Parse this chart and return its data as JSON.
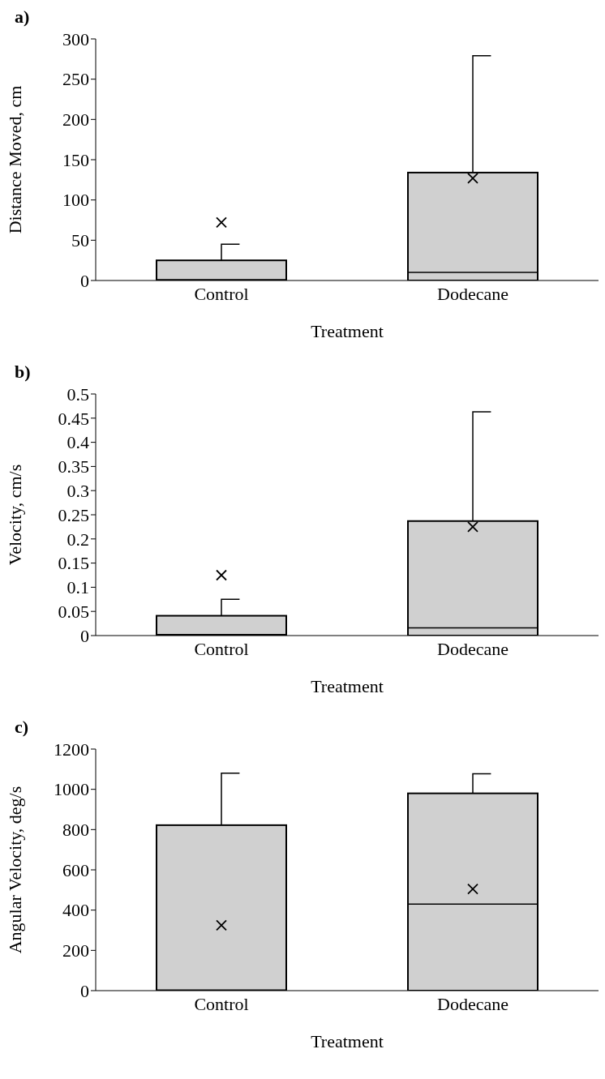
{
  "chart_data": [
    {
      "type": "box",
      "title": "a)",
      "xlabel": "Treatment",
      "ylabel": "Distance Moved, cm",
      "categories": [
        "Control",
        "Dodecane"
      ],
      "color": "#d0d0d0",
      "ylim": [
        0,
        300
      ],
      "yticks": [
        0,
        50,
        100,
        150,
        200,
        250,
        300
      ],
      "grid": false,
      "legend": false,
      "boxes": [
        {
          "q1": 0,
          "median": 1,
          "q3": 25,
          "high": 45,
          "mean": 72
        },
        {
          "q1": 0,
          "median": 10,
          "q3": 134,
          "high": 279,
          "mean": 127
        }
      ]
    },
    {
      "type": "box",
      "title": "b)",
      "xlabel": "Treatment",
      "ylabel": "Velocity, cm/s",
      "categories": [
        "Control",
        "Dodecane"
      ],
      "color": "#d0d0d0",
      "ylim": [
        0,
        0.5
      ],
      "yticks": [
        0,
        0.05,
        0.1,
        0.15,
        0.2,
        0.25,
        0.3,
        0.35,
        0.4,
        0.45,
        0.5
      ],
      "grid": false,
      "legend": false,
      "boxes": [
        {
          "q1": 0,
          "median": 0.002,
          "q3": 0.041,
          "high": 0.075,
          "mean": 0.125
        },
        {
          "q1": 0,
          "median": 0.016,
          "q3": 0.237,
          "high": 0.463,
          "mean": 0.225
        }
      ]
    },
    {
      "type": "box",
      "title": "c)",
      "xlabel": "Treatment",
      "ylabel": "Angular Velocity, deg/s",
      "categories": [
        "Control",
        "Dodecane"
      ],
      "color": "#d0d0d0",
      "ylim": [
        0,
        1200
      ],
      "yticks": [
        0,
        200,
        400,
        600,
        800,
        1000,
        1200
      ],
      "grid": false,
      "legend": false,
      "boxes": [
        {
          "q1": 0,
          "median": 3,
          "q3": 822,
          "high": 1080,
          "mean": 325
        },
        {
          "q1": 0,
          "median": 430,
          "q3": 980,
          "high": 1077,
          "mean": 505
        }
      ]
    }
  ]
}
